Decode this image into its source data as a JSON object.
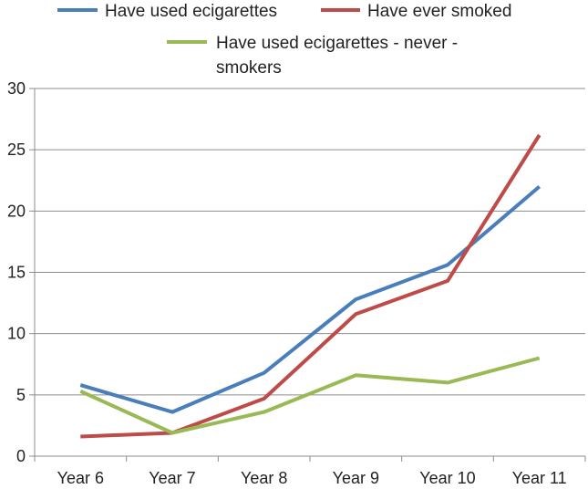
{
  "chart_data": {
    "type": "line",
    "categories": [
      "Year 6",
      "Year 7",
      "Year 8",
      "Year 9",
      "Year 10",
      "Year 11"
    ],
    "series": [
      {
        "name": "Have used ecigarettes",
        "color": "#4a7ebb",
        "values": [
          5.8,
          3.6,
          6.8,
          12.8,
          15.6,
          22.0
        ]
      },
      {
        "name": "Have ever smoked",
        "color": "#be4b48",
        "values": [
          1.6,
          1.9,
          4.7,
          11.6,
          14.3,
          26.2
        ]
      },
      {
        "name": "Have used ecigarettes - never - smokers",
        "color": "#98b954",
        "values": [
          5.3,
          1.9,
          3.6,
          6.6,
          6.0,
          8.0
        ]
      }
    ],
    "ylim": [
      0,
      30
    ],
    "yticks": [
      0,
      5,
      10,
      15,
      20,
      25,
      30
    ],
    "grid": true,
    "legend_position": "top",
    "title": "",
    "xlabel": "",
    "ylabel": ""
  },
  "legend": {
    "line2": "Have used ecigarettes - never -",
    "line3": "smokers"
  }
}
